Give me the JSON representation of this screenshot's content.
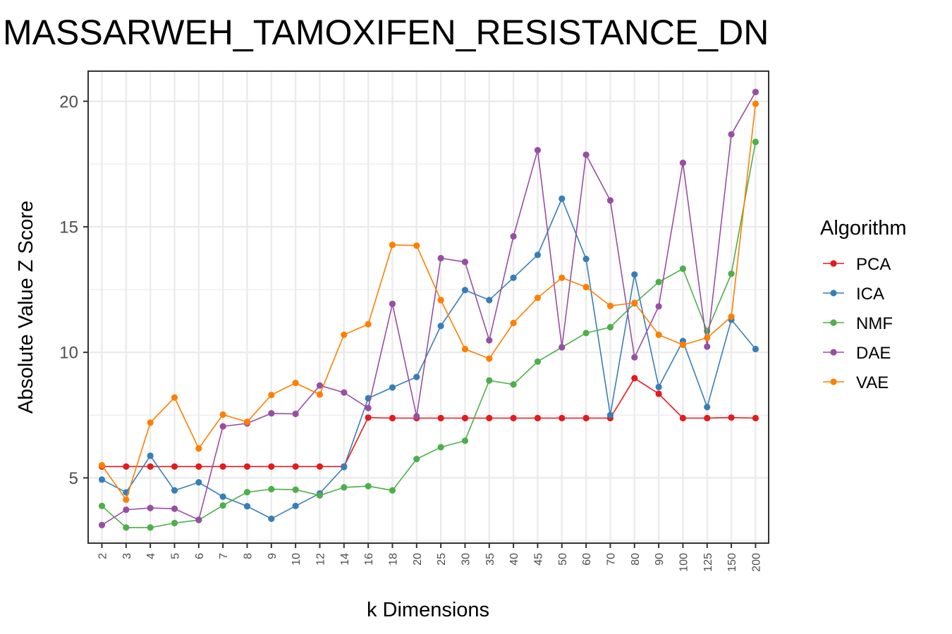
{
  "chart_data": {
    "type": "line",
    "title": "MASSARWEH_TAMOXIFEN_RESISTANCE_DN",
    "xlabel": "k Dimensions",
    "ylabel": "Absolute Value Z Score",
    "categories": [
      "2",
      "3",
      "4",
      "5",
      "6",
      "7",
      "8",
      "9",
      "10",
      "12",
      "14",
      "16",
      "18",
      "20",
      "25",
      "30",
      "35",
      "40",
      "45",
      "50",
      "60",
      "70",
      "80",
      "90",
      "100",
      "125",
      "150",
      "200"
    ],
    "y_ticks": [
      5,
      10,
      15,
      20
    ],
    "ylim": [
      2.4,
      21.2
    ],
    "grid": true,
    "legend": {
      "title": "Algorithm",
      "position": "right"
    },
    "series": [
      {
        "name": "PCA",
        "color": "#e41a1c",
        "values": [
          5.45,
          5.45,
          5.45,
          5.45,
          5.45,
          5.45,
          5.45,
          5.45,
          5.45,
          5.45,
          5.45,
          7.4,
          7.38,
          7.38,
          7.38,
          7.38,
          7.38,
          7.38,
          7.38,
          7.38,
          7.38,
          7.38,
          8.97,
          8.35,
          7.38,
          7.38,
          7.4,
          7.38
        ]
      },
      {
        "name": "ICA",
        "color": "#377eb8",
        "values": [
          4.93,
          4.42,
          5.88,
          4.5,
          4.82,
          4.25,
          3.87,
          3.37,
          3.88,
          4.38,
          5.43,
          8.17,
          8.6,
          9.02,
          11.05,
          12.48,
          12.08,
          12.97,
          13.88,
          16.12,
          13.72,
          7.5,
          13.1,
          8.62,
          10.45,
          7.82,
          11.3,
          10.13
        ]
      },
      {
        "name": "NMF",
        "color": "#4daf4a",
        "values": [
          3.88,
          3.02,
          3.02,
          3.2,
          3.32,
          3.9,
          4.43,
          4.55,
          4.53,
          4.3,
          4.62,
          4.67,
          4.5,
          5.75,
          6.22,
          6.48,
          8.88,
          8.72,
          9.63,
          10.2,
          10.77,
          11.0,
          11.95,
          12.8,
          13.33,
          10.85,
          13.13,
          18.38
        ]
      },
      {
        "name": "DAE",
        "color": "#984ea3",
        "values": [
          3.12,
          3.73,
          3.8,
          3.77,
          3.33,
          7.05,
          7.17,
          7.57,
          7.55,
          8.68,
          8.4,
          7.78,
          11.93,
          7.45,
          13.75,
          13.6,
          10.48,
          14.62,
          18.05,
          10.2,
          17.87,
          16.05,
          9.8,
          11.83,
          17.55,
          10.23,
          18.68,
          20.37
        ]
      },
      {
        "name": "VAE",
        "color": "#ff7f00",
        "values": [
          5.5,
          4.13,
          7.2,
          8.2,
          6.17,
          7.52,
          7.23,
          8.3,
          8.78,
          8.32,
          10.7,
          11.12,
          14.28,
          14.25,
          12.08,
          10.13,
          9.75,
          11.17,
          12.17,
          12.97,
          12.6,
          11.85,
          11.97,
          10.7,
          10.3,
          10.58,
          11.42,
          19.9
        ]
      }
    ]
  }
}
